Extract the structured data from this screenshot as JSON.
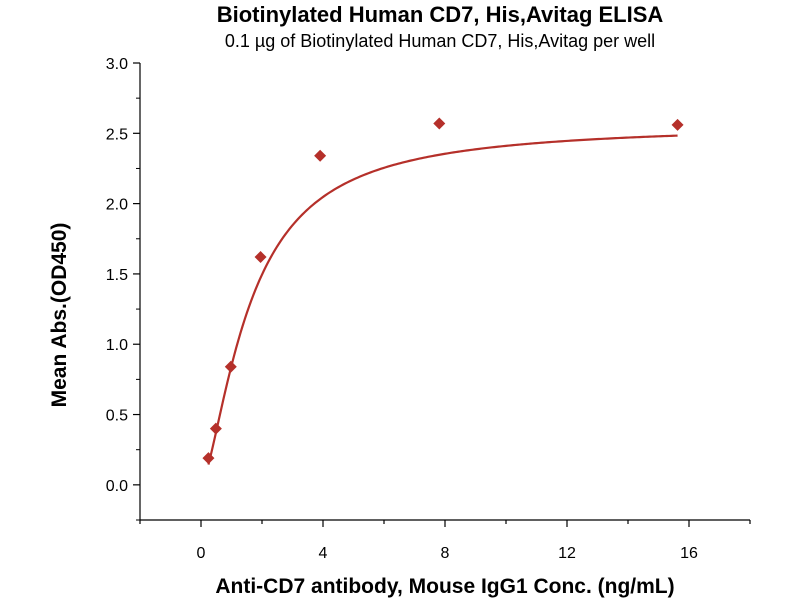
{
  "chart_data": {
    "type": "scatter",
    "title": "Biotinylated Human CD7, His,Avitag ELISA",
    "subtitle": "0.1 µg of Biotinylated Human CD7, His,Avitag per well",
    "xlabel": "Anti-CD7 antibody, Mouse IgG1 Conc. (ng/mL)",
    "ylabel": "Mean Abs.(OD450)",
    "xlim": [
      -2,
      18
    ],
    "ylim": [
      -0.25,
      3.0
    ],
    "xticks": [
      0,
      4,
      8,
      12,
      16
    ],
    "xtick_labels": [
      "0",
      "4",
      "8",
      "12",
      "16"
    ],
    "yticks": [
      0.0,
      0.5,
      1.0,
      1.5,
      2.0,
      2.5,
      3.0
    ],
    "ytick_labels": [
      "0.0",
      "0.5",
      "1.0",
      "1.5",
      "2.0",
      "2.5",
      "3.0"
    ],
    "grid": false,
    "legend": "none",
    "series": [
      {
        "x": [
          0.244,
          0.488,
          0.977,
          1.953,
          3.906,
          7.813,
          15.625
        ],
        "y": [
          0.19,
          0.4,
          0.84,
          1.62,
          2.34,
          2.57,
          2.56
        ],
        "marker": "diamond",
        "color": "#b5302a",
        "fit": "4PL"
      }
    ]
  }
}
